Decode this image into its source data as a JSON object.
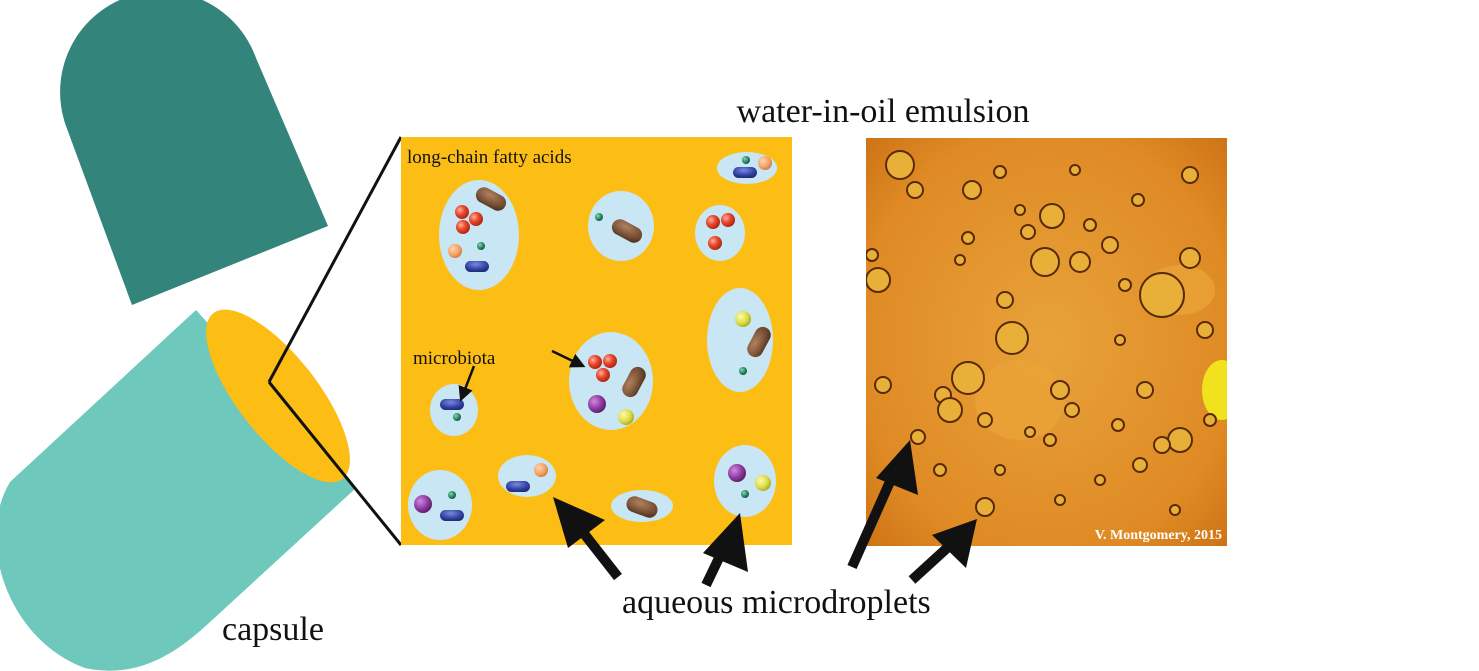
{
  "labels": {
    "title": "water-in-oil emulsion",
    "fatty_acids": "long-chain fatty acids",
    "microbiota": "microbiota",
    "capsule": "capsule",
    "droplets": "aqueous microdroplets",
    "credit": "V. Montgomery, 2015"
  },
  "colors": {
    "capsule_cap": "#33847a",
    "capsule_body": "#6ec8bc",
    "oil": "#fcbe14",
    "droplet": "#c8e6f4",
    "micrograph": "#e09026",
    "bacteria_red": "#e8452b",
    "bacteria_brown": "#7b5236",
    "bacteria_blue": "#2e3f9c",
    "bacteria_green": "#2a8a66",
    "bacteria_orange": "#f6a46a",
    "bacteria_purple": "#8e3aa0",
    "bacteria_yellow": "#dede48"
  },
  "icons": [
    "capsule-icon",
    "zoom-lines",
    "arrow-icon"
  ]
}
